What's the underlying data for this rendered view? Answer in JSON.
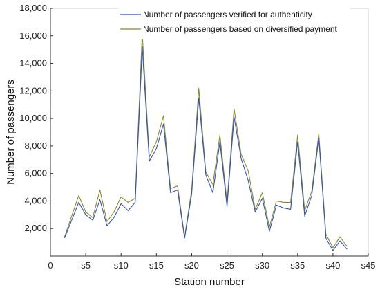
{
  "chart_data": {
    "type": "line",
    "title": "",
    "xlabel": "Station number",
    "ylabel": "Number of passengers",
    "xlim": [
      0,
      45
    ],
    "ylim": [
      0,
      18000
    ],
    "x_ticks": [
      {
        "value": 0,
        "label": "0"
      },
      {
        "value": 5,
        "label": "s5"
      },
      {
        "value": 10,
        "label": "s10"
      },
      {
        "value": 15,
        "label": "s15"
      },
      {
        "value": 20,
        "label": "s20"
      },
      {
        "value": 25,
        "label": "s25"
      },
      {
        "value": 30,
        "label": "s30"
      },
      {
        "value": 35,
        "label": "s35"
      },
      {
        "value": 40,
        "label": "s40"
      },
      {
        "value": 45,
        "label": "s45"
      }
    ],
    "y_ticks": [
      {
        "value": 2000,
        "label": "2,000"
      },
      {
        "value": 4000,
        "label": "4,000"
      },
      {
        "value": 6000,
        "label": "6,000"
      },
      {
        "value": 8000,
        "label": "8,000"
      },
      {
        "value": 10000,
        "label": "10,000"
      },
      {
        "value": 12000,
        "label": "12,000"
      },
      {
        "value": 14000,
        "label": "14,000"
      },
      {
        "value": 16000,
        "label": "16,000"
      },
      {
        "value": 18000,
        "label": "18,000"
      }
    ],
    "grid": false,
    "legend_position": "top-right",
    "x": [
      2,
      3,
      4,
      5,
      6,
      7,
      8,
      9,
      10,
      11,
      12,
      13,
      14,
      15,
      16,
      17,
      18,
      19,
      20,
      21,
      22,
      23,
      24,
      25,
      26,
      27,
      28,
      29,
      30,
      31,
      32,
      33,
      34,
      35,
      36,
      37,
      38,
      39,
      40,
      41,
      42
    ],
    "series": [
      {
        "name": "Number of passengers verified for authenticity",
        "color": "#2f4fc8",
        "values": [
          1300,
          2600,
          3900,
          3000,
          2600,
          4100,
          2200,
          2800,
          3800,
          3300,
          3900,
          15200,
          6900,
          7800,
          9600,
          4600,
          4800,
          1300,
          4500,
          11500,
          5900,
          4600,
          8300,
          3600,
          10100,
          7100,
          5500,
          3200,
          4200,
          1800,
          3700,
          3500,
          3400,
          8300,
          2900,
          4400,
          8600,
          1300,
          400,
          1100,
          500
        ]
      },
      {
        "name": "Number of passengers based on diversified payment",
        "color": "#8a8a22",
        "values": [
          1400,
          2900,
          4400,
          3200,
          2800,
          4800,
          2500,
          3200,
          4300,
          3900,
          4200,
          16200,
          7200,
          8300,
          10200,
          4900,
          5100,
          1400,
          4800,
          12200,
          6100,
          5200,
          8800,
          3900,
          10700,
          7400,
          6200,
          3400,
          4600,
          2100,
          4000,
          3900,
          3900,
          8800,
          3300,
          4700,
          8900,
          1600,
          600,
          1400,
          700
        ]
      }
    ]
  }
}
